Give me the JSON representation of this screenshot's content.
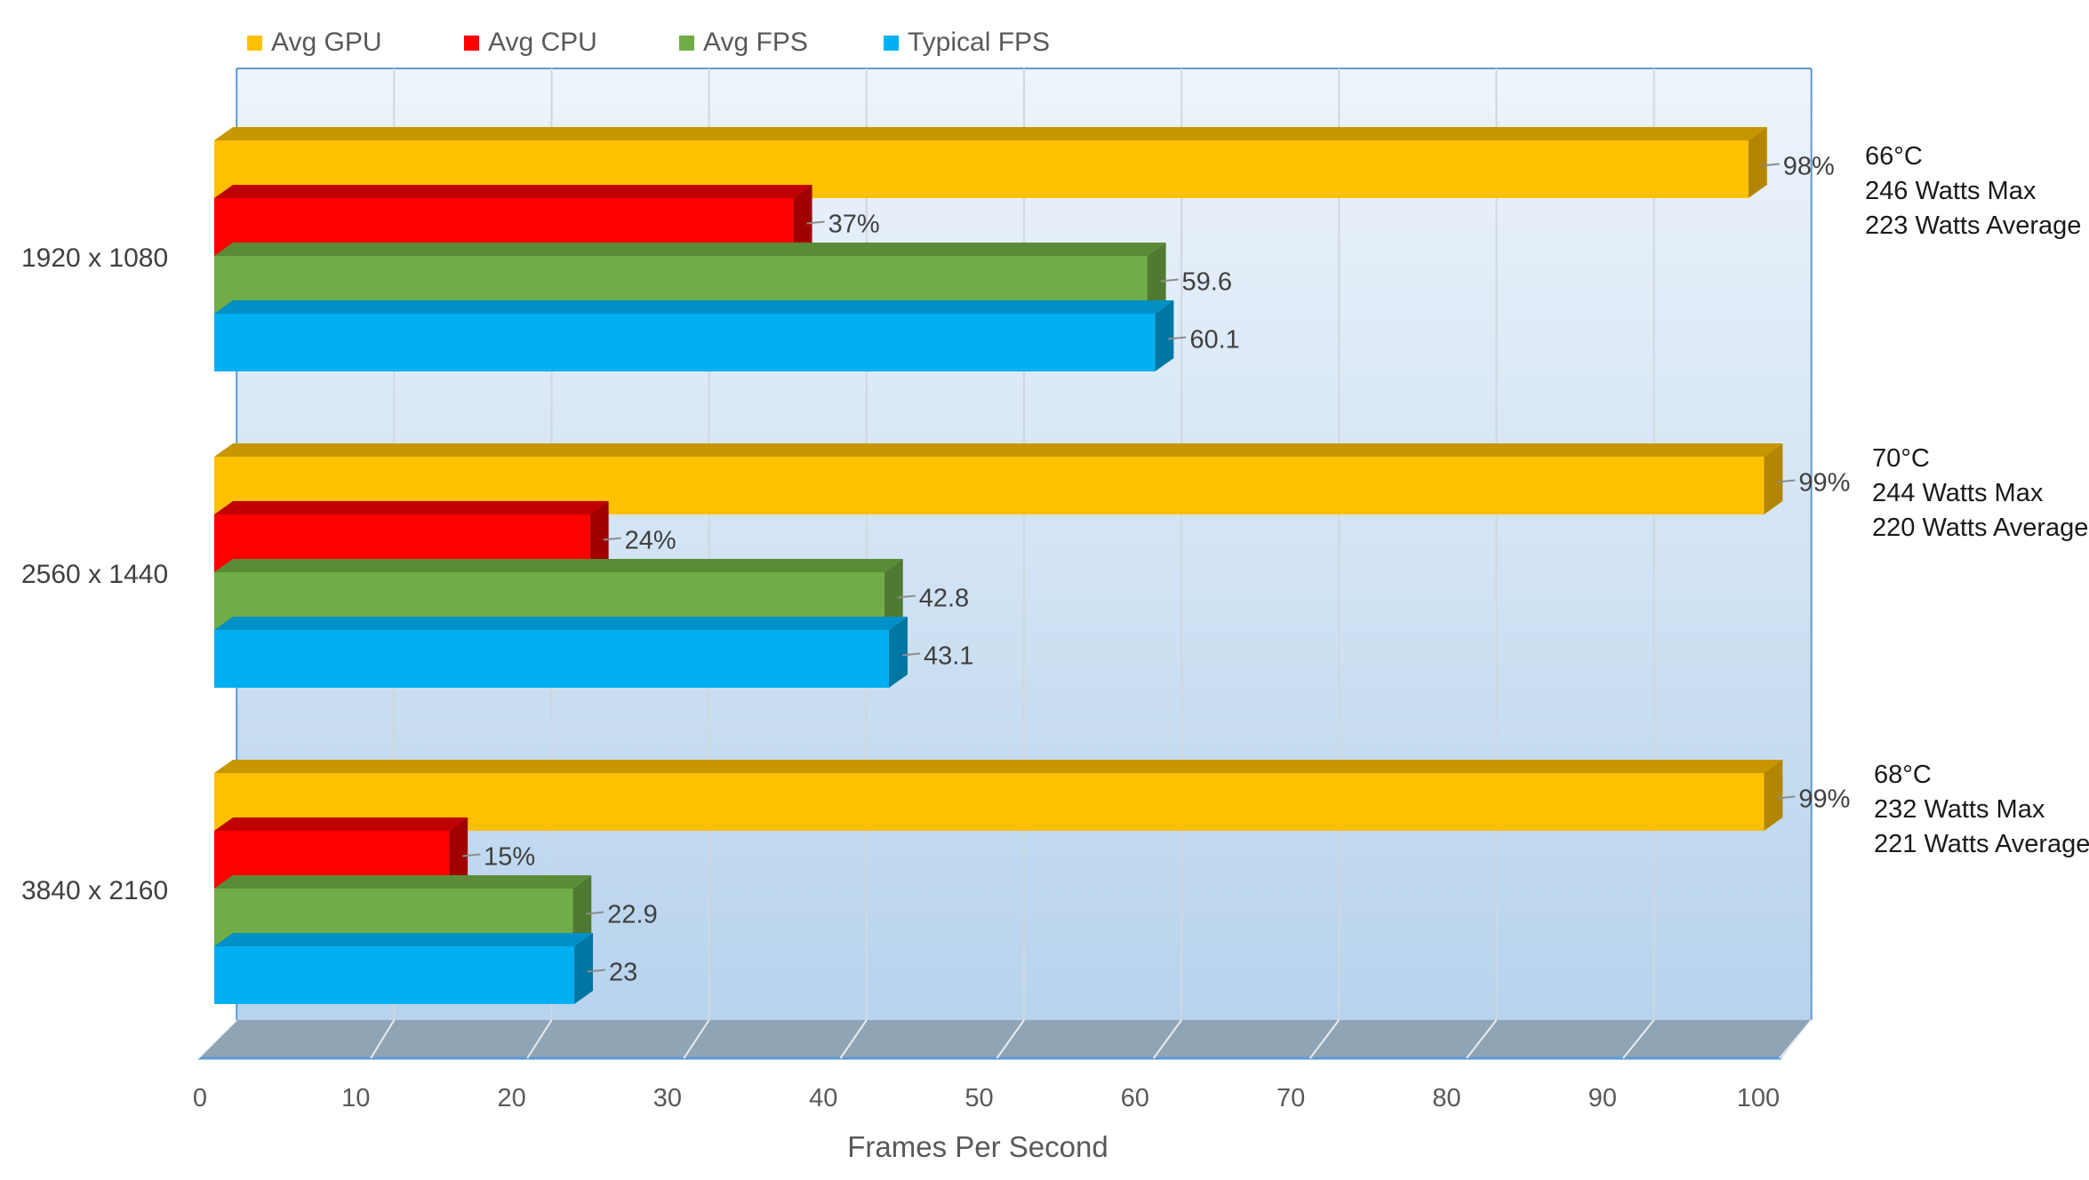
{
  "chart_data": {
    "type": "bar",
    "orientation": "horizontal",
    "style": "3d-clustered",
    "title": "",
    "xlabel": "Frames Per Second",
    "ylabel": "",
    "xlim": [
      0,
      100
    ],
    "x_ticks": [
      "0",
      "10",
      "20",
      "30",
      "40",
      "50",
      "60",
      "70",
      "80",
      "90",
      "100"
    ],
    "grid": true,
    "legend_position": "top",
    "categories": [
      "1920 x 1080",
      "2560 x 1440",
      "3840 x 2160"
    ],
    "series": [
      {
        "name": "Avg GPU",
        "values": [
          98,
          99,
          99
        ],
        "labels": [
          "98%",
          "99%",
          "99%"
        ]
      },
      {
        "name": "Avg CPU",
        "values": [
          37,
          24,
          15
        ],
        "labels": [
          "37%",
          "24%",
          "15%"
        ]
      },
      {
        "name": "Avg FPS",
        "values": [
          59.6,
          42.8,
          22.9
        ],
        "labels": [
          "59.6",
          "42.8",
          "22.9"
        ]
      },
      {
        "name": "Typical FPS",
        "values": [
          60.1,
          43.1,
          23
        ],
        "labels": [
          "60.1",
          "43.1",
          "23"
        ]
      }
    ],
    "annotations": [
      [
        "66°C",
        "246 Watts Max",
        "223 Watts Average"
      ],
      [
        "70°C",
        "244 Watts Max",
        "220 Watts Average"
      ],
      [
        "68°C",
        "232 Watts Max",
        "221 Watts Average"
      ]
    ]
  },
  "colors": {
    "Avg GPU": {
      "front": "#ffc000",
      "side": "#b38600",
      "top": "#c79600"
    },
    "Avg CPU": {
      "front": "#ff0000",
      "side": "#a00000",
      "top": "#c00000"
    },
    "Avg FPS": {
      "front": "#70ad47",
      "side": "#4e7a31",
      "top": "#5a8c38"
    },
    "Typical FPS": {
      "front": "#00b0f0",
      "side": "#0076a3",
      "top": "#0090c5"
    },
    "wall_top": "#eef4fb",
    "wall_bottom": "#b7d3ed",
    "floor": "#8fa4b5",
    "axis_line": "#5b9bd5",
    "grid": "#d0d7de"
  }
}
